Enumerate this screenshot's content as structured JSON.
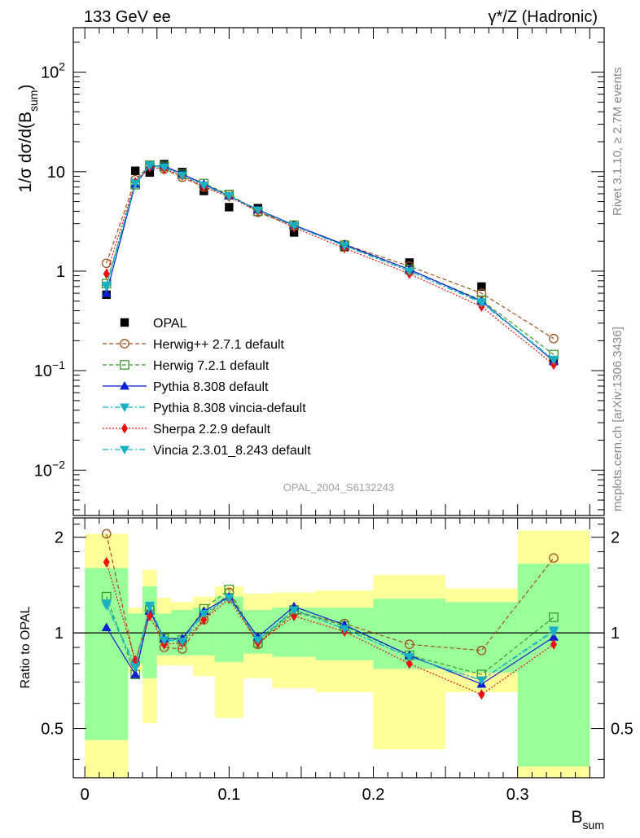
{
  "header": {
    "left_label": "133 GeV ee",
    "right_label": "γ*/Z (Hadronic)"
  },
  "side_texts": {
    "rivet": "Rivet 3.1.10, ≥ 2.7M events",
    "mcplots": "mcplots.cern.ch [arXiv:1306.3436]"
  },
  "watermark": "OPAL_2004_S6132243",
  "chart_data": [
    {
      "type": "line",
      "panel": "main",
      "yscale": "log",
      "ylabel": "1/σ dσ/d(B_sum)",
      "ylim": [
        0.0035,
        280
      ],
      "xlim": [
        -0.008,
        0.36
      ],
      "grid": false,
      "legend_position": "lower-left",
      "yticks": [
        {
          "value": 0.01,
          "label": "10^-2"
        },
        {
          "value": 0.1,
          "label": "10^-1"
        },
        {
          "value": 1,
          "label": "1"
        },
        {
          "value": 10,
          "label": "10"
        },
        {
          "value": 100,
          "label": "10^2"
        }
      ],
      "x": [
        0.015,
        0.035,
        0.045,
        0.055,
        0.0675,
        0.0825,
        0.1,
        0.12,
        0.145,
        0.18,
        0.225,
        0.275,
        0.325
      ],
      "series": [
        {
          "name": "OPAL",
          "color": "#000000",
          "marker": "square-filled",
          "line": "none",
          "values": [
            0.58,
            10.2,
            9.8,
            11.9,
            9.9,
            6.4,
            4.4,
            4.3,
            2.45,
            1.75,
            1.22,
            0.7,
            0.125
          ]
        },
        {
          "name": "Herwig++ 2.7.1 default",
          "color": "#a0521e",
          "marker": "circle-open",
          "line": "dashed",
          "values": [
            1.2,
            8.3,
            11.5,
            10.6,
            8.8,
            7.0,
            5.9,
            3.9,
            2.85,
            1.85,
            1.12,
            0.6,
            0.21
          ]
        },
        {
          "name": "Herwig 7.2.1 default",
          "color": "#3a9a2e",
          "marker": "square-open",
          "line": "dashed",
          "values": [
            0.75,
            7.4,
            11.6,
            11.3,
            9.4,
            7.6,
            5.9,
            4.0,
            2.9,
            1.82,
            1.04,
            0.51,
            0.145
          ]
        },
        {
          "name": "Pythia 8.308 default",
          "color": "#0a1fd0",
          "marker": "triangle-up",
          "line": "solid",
          "values": [
            0.6,
            7.5,
            11.4,
            11.4,
            9.5,
            7.5,
            5.7,
            4.15,
            2.9,
            1.85,
            1.04,
            0.5,
            0.125
          ]
        },
        {
          "name": "Pythia 8.308 vincia-default",
          "color": "#1ab0c4",
          "marker": "triangle-down",
          "line": "dashdot",
          "values": [
            0.72,
            7.8,
            11.6,
            11.1,
            9.2,
            7.3,
            5.7,
            4.1,
            2.85,
            1.8,
            1.0,
            0.49,
            0.13
          ]
        },
        {
          "name": "Sherpa 2.2.9 default",
          "color": "#e81010",
          "marker": "diamond",
          "line": "dotted",
          "values": [
            0.94,
            7.8,
            11.1,
            10.6,
            9.1,
            7.0,
            5.6,
            4.0,
            2.75,
            1.7,
            0.94,
            0.44,
            0.115
          ]
        },
        {
          "name": "Vincia 2.3.01_8.243 default",
          "color": "#1ab0c4",
          "marker": "triangle-down",
          "line": "dashdot",
          "values": [
            0.7,
            7.6,
            11.5,
            11.1,
            9.2,
            7.3,
            5.7,
            4.1,
            2.85,
            1.8,
            1.0,
            0.48,
            0.128
          ]
        }
      ]
    },
    {
      "type": "line",
      "panel": "ratio",
      "ylabel": "Ratio to OPAL",
      "xlabel": "B_sum",
      "ylim": [
        0.35,
        2.3
      ],
      "xlim": [
        -0.008,
        0.36
      ],
      "reference_line": 1,
      "yticks": [
        {
          "value": 0.5,
          "label": "0.5"
        },
        {
          "value": 1,
          "label": "1"
        },
        {
          "value": 2,
          "label": "2"
        }
      ],
      "xticks": [
        {
          "value": 0,
          "label": "0"
        },
        {
          "value": 0.1,
          "label": "0.1"
        },
        {
          "value": 0.2,
          "label": "0.2"
        },
        {
          "value": 0.3,
          "label": "0.3"
        }
      ],
      "uncertainty_bands": [
        {
          "x_range": [
            0.0,
            0.03
          ],
          "stat_sys": [
            0.3,
            2.05
          ],
          "stat": [
            0.46,
            1.6
          ]
        },
        {
          "x_range": [
            0.03,
            0.04
          ],
          "stat_sys": [
            0.75,
            1.2
          ],
          "stat": [
            0.8,
            1.15
          ]
        },
        {
          "x_range": [
            0.04,
            0.05
          ],
          "stat_sys": [
            0.52,
            1.58
          ],
          "stat": [
            0.72,
            1.4
          ]
        },
        {
          "x_range": [
            0.05,
            0.06
          ],
          "stat_sys": [
            0.79,
            1.29
          ],
          "stat": [
            0.85,
            1.15
          ]
        },
        {
          "x_range": [
            0.06,
            0.075
          ],
          "stat_sys": [
            0.79,
            1.25
          ],
          "stat": [
            0.85,
            1.18
          ]
        },
        {
          "x_range": [
            0.075,
            0.09
          ],
          "stat_sys": [
            0.73,
            1.3
          ],
          "stat": [
            0.85,
            1.2
          ]
        },
        {
          "x_range": [
            0.09,
            0.11
          ],
          "stat_sys": [
            0.54,
            1.4
          ],
          "stat": [
            0.81,
            1.3
          ]
        },
        {
          "x_range": [
            0.11,
            0.13
          ],
          "stat_sys": [
            0.72,
            1.33
          ],
          "stat": [
            0.86,
            1.18
          ]
        },
        {
          "x_range": [
            0.13,
            0.16
          ],
          "stat_sys": [
            0.67,
            1.34
          ],
          "stat": [
            0.84,
            1.2
          ]
        },
        {
          "x_range": [
            0.16,
            0.2
          ],
          "stat_sys": [
            0.65,
            1.36
          ],
          "stat": [
            0.82,
            1.2
          ]
        },
        {
          "x_range": [
            0.2,
            0.25
          ],
          "stat_sys": [
            0.43,
            1.52
          ],
          "stat": [
            0.77,
            1.28
          ]
        },
        {
          "x_range": [
            0.25,
            0.3
          ],
          "stat_sys": [
            0.65,
            1.38
          ],
          "stat": [
            0.75,
            1.25
          ]
        },
        {
          "x_range": [
            0.3,
            0.35
          ],
          "stat_sys": [
            0.3,
            2.1
          ],
          "stat": [
            0.38,
            1.65
          ]
        }
      ],
      "x": [
        0.015,
        0.035,
        0.045,
        0.055,
        0.0675,
        0.0825,
        0.1,
        0.12,
        0.145,
        0.18,
        0.225,
        0.275,
        0.325
      ],
      "series": [
        {
          "name": "Herwig++ 2.7.1 default",
          "color": "#a0521e",
          "marker": "circle-open",
          "line": "dashed",
          "values": [
            2.05,
            0.8,
            1.2,
            0.9,
            0.89,
            1.1,
            1.34,
            0.92,
            1.16,
            1.07,
            0.92,
            0.88,
            1.72
          ]
        },
        {
          "name": "Herwig 7.2.1 default",
          "color": "#3a9a2e",
          "marker": "square-open",
          "line": "dashed",
          "values": [
            1.3,
            0.74,
            1.18,
            0.96,
            0.95,
            1.19,
            1.37,
            0.93,
            1.18,
            1.05,
            0.85,
            0.74,
            1.12
          ]
        },
        {
          "name": "Pythia 8.308 default",
          "color": "#0a1fd0",
          "marker": "triangle-up",
          "line": "solid",
          "values": [
            1.04,
            0.74,
            1.17,
            0.96,
            0.96,
            1.17,
            1.3,
            0.97,
            1.21,
            1.06,
            0.85,
            0.69,
            0.97
          ]
        },
        {
          "name": "Pythia 8.308 vincia-default",
          "color": "#1ab0c4",
          "marker": "triangle-down",
          "line": "dashdot",
          "values": [
            1.24,
            0.79,
            1.22,
            0.95,
            0.94,
            1.15,
            1.29,
            0.95,
            1.18,
            1.03,
            0.84,
            0.71,
            1.02
          ]
        },
        {
          "name": "Sherpa 2.2.9 default",
          "color": "#e81010",
          "marker": "diamond",
          "line": "dotted",
          "values": [
            1.67,
            0.82,
            1.13,
            0.92,
            0.93,
            1.1,
            1.28,
            0.93,
            1.13,
            1.01,
            0.8,
            0.64,
            0.92
          ]
        },
        {
          "name": "Vincia 2.3.01_8.243 default",
          "color": "#1ab0c4",
          "marker": "triangle-down",
          "line": "dashdot",
          "values": [
            1.22,
            0.78,
            1.21,
            0.95,
            0.94,
            1.15,
            1.29,
            0.95,
            1.18,
            1.03,
            0.84,
            0.71,
            1.01
          ]
        }
      ]
    }
  ]
}
